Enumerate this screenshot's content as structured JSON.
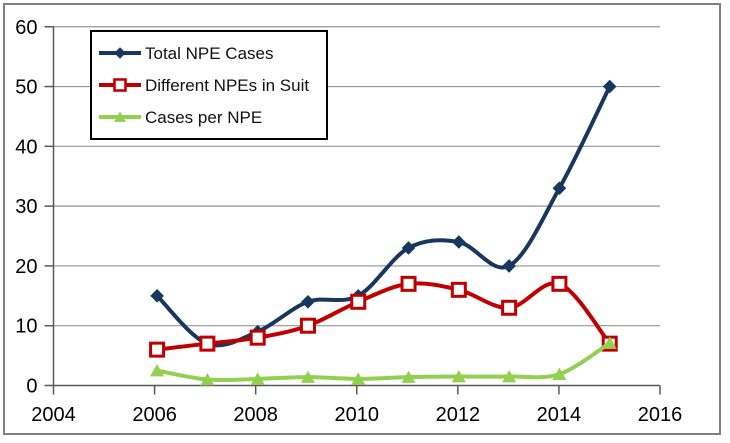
{
  "chart_data": {
    "type": "line",
    "title": "",
    "xlabel": "",
    "ylabel": "",
    "x": [
      2006,
      2007,
      2008,
      2009,
      2010,
      2011,
      2012,
      2013,
      2014,
      2015
    ],
    "series": [
      {
        "name": "Total NPE Cases",
        "marker": "diamond",
        "color": "#17375E",
        "values": [
          15,
          7,
          9,
          14,
          15,
          23,
          24,
          20,
          33,
          50
        ]
      },
      {
        "name": "Different NPEs in Suit",
        "marker": "open-square",
        "color": "#C00000",
        "values": [
          6,
          7,
          8,
          10,
          14,
          17,
          16,
          13,
          17,
          7
        ]
      },
      {
        "name": "Cases per NPE",
        "marker": "triangle",
        "color": "#92D050",
        "values": [
          2.5,
          1,
          1.1,
          1.4,
          1.1,
          1.4,
          1.5,
          1.5,
          1.9,
          7.1
        ]
      }
    ],
    "x_ticks": [
      2004,
      2006,
      2008,
      2010,
      2012,
      2014,
      2016
    ],
    "y_ticks": [
      0,
      10,
      20,
      30,
      40,
      50,
      60
    ],
    "xlim": [
      2004,
      2016
    ],
    "ylim": [
      0,
      60
    ],
    "grid": "horizontal-only",
    "legend_position": "top-left",
    "smoothed_lines": true
  },
  "colors": {
    "background": "#FFFFFF",
    "gridline": "#949494",
    "axis": "#595959",
    "tick_label": "#000000",
    "legend_border": "#000000",
    "outer_border": "#808080"
  }
}
